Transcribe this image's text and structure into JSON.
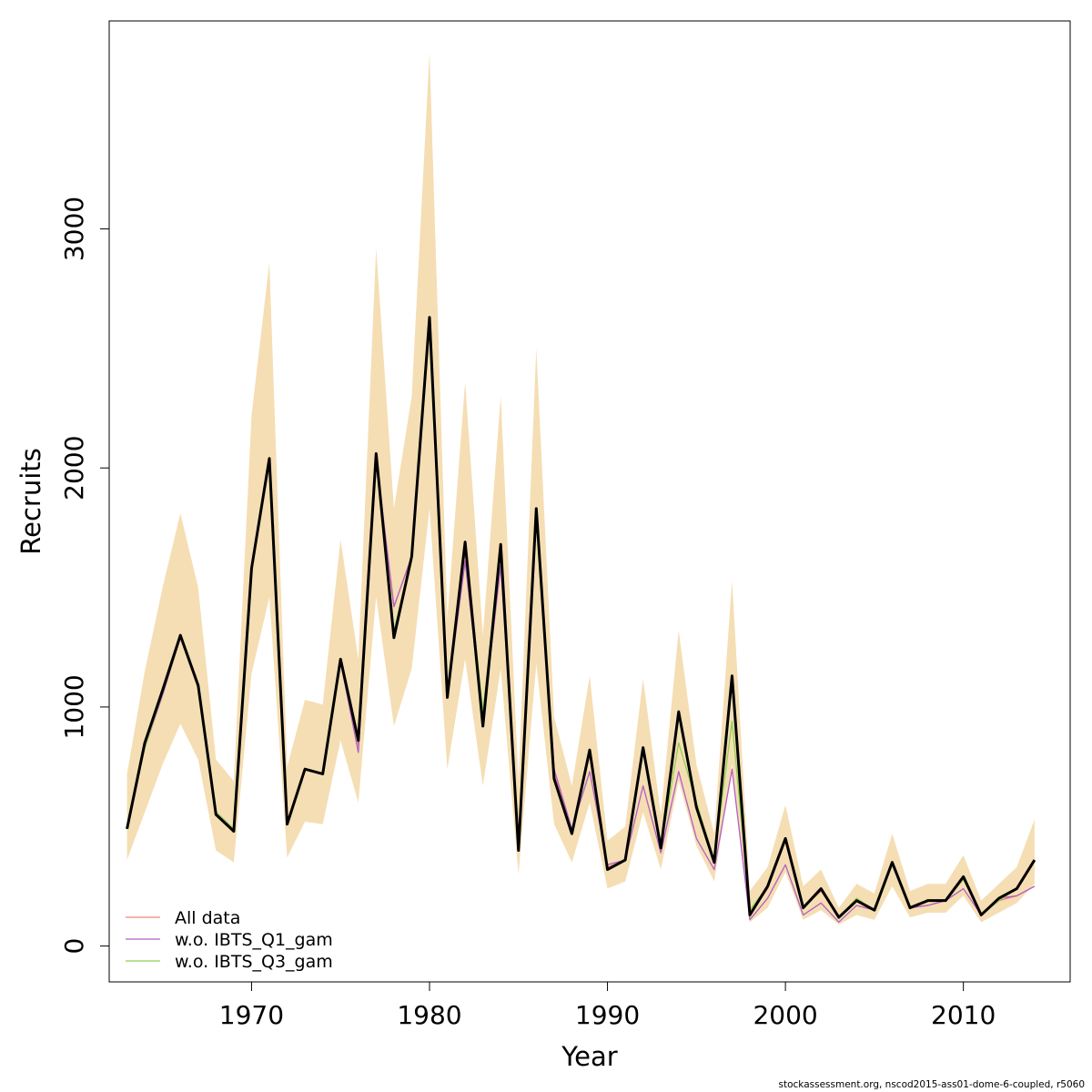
{
  "chart_data": {
    "type": "line",
    "xlabel": "Year",
    "ylabel": "Recruits",
    "xlim": [
      1962,
      2016
    ],
    "ylim": [
      -150,
      3870
    ],
    "x_ticks": [
      1970,
      1980,
      1990,
      2000,
      2010
    ],
    "y_ticks": [
      0,
      1000,
      2000,
      3000
    ],
    "x": [
      1963,
      1964,
      1965,
      1966,
      1967,
      1968,
      1969,
      1970,
      1971,
      1972,
      1973,
      1974,
      1975,
      1976,
      1977,
      1978,
      1979,
      1980,
      1981,
      1982,
      1983,
      1984,
      1985,
      1986,
      1987,
      1988,
      1989,
      1990,
      1991,
      1992,
      1993,
      1994,
      1995,
      1996,
      1997,
      1998,
      1999,
      2000,
      2001,
      2002,
      2003,
      2004,
      2005,
      2006,
      2007,
      2008,
      2009,
      2010,
      2011,
      2012,
      2013,
      2014
    ],
    "confidence_band": {
      "color": "#f5deb3",
      "upper": [
        720,
        1150,
        1500,
        1810,
        1500,
        780,
        690,
        2220,
        2860,
        750,
        1030,
        1010,
        1700,
        1200,
        2920,
        1830,
        2300,
        3740,
        1370,
        2360,
        1300,
        2300,
        690,
        2500,
        960,
        670,
        1130,
        440,
        500,
        1120,
        550,
        1320,
        760,
        470,
        1530,
        230,
        330,
        590,
        250,
        320,
        160,
        260,
        220,
        470,
        230,
        260,
        260,
        380,
        190,
        260,
        330,
        530
      ],
      "lower": [
        360,
        560,
        760,
        930,
        780,
        400,
        350,
        1140,
        1460,
        370,
        520,
        510,
        860,
        600,
        1460,
        920,
        1160,
        1830,
        740,
        1200,
        670,
        1160,
        300,
        1180,
        510,
        350,
        600,
        240,
        270,
        560,
        320,
        690,
        420,
        270,
        760,
        100,
        160,
        310,
        110,
        150,
        90,
        130,
        110,
        250,
        120,
        140,
        140,
        210,
        100,
        140,
        180,
        260
      ]
    },
    "series": [
      {
        "name": "All data",
        "color": "#e8837f",
        "width": 1.3,
        "values": [
          490,
          840,
          1060,
          1290,
          1080,
          560,
          490,
          1580,
          2040,
          510,
          740,
          720,
          1190,
          840,
          2040,
          1420,
          1630,
          2620,
          1040,
          1650,
          960,
          1660,
          450,
          1800,
          720,
          480,
          800,
          330,
          360,
          820,
          410,
          980,
          580,
          350,
          1110,
          130,
          240,
          440,
          160,
          230,
          120,
          190,
          150,
          350,
          160,
          170,
          190,
          280,
          130,
          190,
          210,
          250
        ]
      },
      {
        "name": "w.o. IBTS_Q1_gam",
        "color": "#b25fc2",
        "width": 1.3,
        "values": [
          490,
          830,
          1050,
          1290,
          1080,
          560,
          490,
          1580,
          2040,
          510,
          740,
          720,
          1190,
          810,
          2040,
          1420,
          1630,
          2620,
          1040,
          1610,
          940,
          1590,
          440,
          1790,
          740,
          490,
          730,
          340,
          360,
          670,
          390,
          730,
          450,
          320,
          740,
          110,
          200,
          340,
          130,
          180,
          100,
          170,
          150,
          350,
          160,
          170,
          190,
          240,
          130,
          200,
          210,
          250
        ]
      },
      {
        "name": "w.o. IBTS_Q3_gam",
        "color": "#8fd14f",
        "width": 1.3,
        "values": [
          490,
          830,
          1060,
          1290,
          1080,
          560,
          490,
          1580,
          2030,
          510,
          740,
          720,
          1200,
          860,
          2040,
          1320,
          1630,
          2600,
          1040,
          1690,
          980,
          1670,
          420,
          1800,
          690,
          470,
          810,
          320,
          360,
          820,
          410,
          850,
          600,
          360,
          940,
          150,
          250,
          450,
          160,
          240,
          120,
          200,
          150,
          350,
          160,
          190,
          190,
          280,
          130,
          190,
          240,
          360
        ]
      },
      {
        "name": "",
        "color": "#000000",
        "width": 3,
        "values": [
          490,
          850,
          1070,
          1300,
          1090,
          550,
          480,
          1580,
          2040,
          510,
          740,
          720,
          1200,
          860,
          2060,
          1290,
          1630,
          2630,
          1040,
          1690,
          920,
          1680,
          400,
          1830,
          700,
          470,
          820,
          320,
          360,
          830,
          410,
          980,
          580,
          350,
          1130,
          130,
          250,
          450,
          160,
          240,
          120,
          190,
          150,
          350,
          160,
          190,
          190,
          290,
          130,
          200,
          240,
          360
        ]
      }
    ],
    "legend": {
      "position": "bottom-left",
      "entries": [
        {
          "label": "All data",
          "color": "#e8837f"
        },
        {
          "label": "w.o. IBTS_Q1_gam",
          "color": "#b25fc2"
        },
        {
          "label": "w.o. IBTS_Q3_gam",
          "color": "#8fd14f"
        }
      ]
    },
    "grid": false
  },
  "footer": "stockassessment.org, nscod2015-ass01-dome-6-coupled, r5060"
}
